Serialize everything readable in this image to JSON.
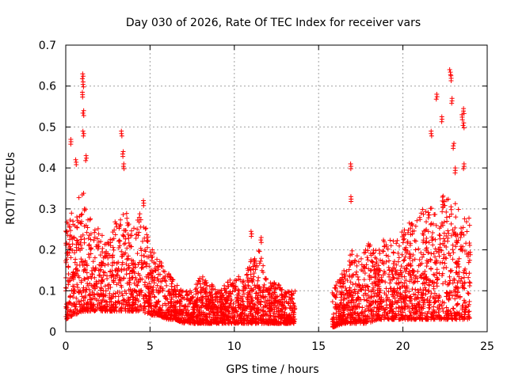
{
  "chart_data": {
    "type": "scatter",
    "title": "Day 030 of 2026, Rate Of TEC Index for receiver vars",
    "xlabel": "GPS time / hours",
    "ylabel": "ROTI / TECUs",
    "xlim": [
      0,
      25
    ],
    "ylim": [
      0,
      0.7
    ],
    "x_ticks": [
      "0",
      "5",
      "10",
      "15",
      "20",
      "25"
    ],
    "y_ticks": [
      "0",
      "0.1",
      "0.2",
      "0.3",
      "0.4",
      "0.5",
      "0.6",
      "0.7"
    ],
    "grid": true,
    "marker": "+",
    "color": "#ff0000",
    "series": [
      {
        "name": "ROTI",
        "segments": [
          {
            "start": 0.0,
            "end": 13.6
          },
          {
            "start": 15.8,
            "end": 24.0
          }
        ],
        "envelope_x": [
          0,
          0.5,
          1,
          1.5,
          2,
          2.5,
          3,
          3.5,
          4,
          4.5,
          5,
          5.5,
          6,
          6.5,
          7,
          7.5,
          8,
          8.5,
          9,
          9.5,
          10,
          10.5,
          11,
          11.5,
          12,
          12.5,
          13,
          13.6,
          15.8,
          16.5,
          17,
          17.5,
          18,
          18.5,
          19,
          19.5,
          20,
          20.5,
          21,
          21.5,
          22,
          22.5,
          23,
          23.5,
          24
        ],
        "envelope_low": [
          0.03,
          0.04,
          0.05,
          0.05,
          0.05,
          0.05,
          0.05,
          0.05,
          0.05,
          0.05,
          0.04,
          0.04,
          0.03,
          0.03,
          0.02,
          0.02,
          0.02,
          0.02,
          0.02,
          0.02,
          0.02,
          0.02,
          0.02,
          0.02,
          0.02,
          0.02,
          0.02,
          0.02,
          0.01,
          0.02,
          0.02,
          0.02,
          0.02,
          0.03,
          0.03,
          0.03,
          0.03,
          0.03,
          0.03,
          0.03,
          0.03,
          0.03,
          0.03,
          0.03,
          0.03
        ],
        "envelope_high": [
          0.28,
          0.3,
          0.35,
          0.27,
          0.25,
          0.22,
          0.28,
          0.3,
          0.25,
          0.3,
          0.22,
          0.18,
          0.15,
          0.12,
          0.1,
          0.1,
          0.14,
          0.12,
          0.11,
          0.12,
          0.14,
          0.13,
          0.18,
          0.2,
          0.12,
          0.12,
          0.1,
          0.1,
          0.1,
          0.15,
          0.2,
          0.18,
          0.22,
          0.2,
          0.25,
          0.22,
          0.25,
          0.28,
          0.3,
          0.3,
          0.32,
          0.35,
          0.32,
          0.3,
          0.28
        ],
        "spikes": [
          {
            "x": 0.3,
            "y": 0.47
          },
          {
            "x": 0.6,
            "y": 0.42
          },
          {
            "x": 1.0,
            "y": 0.63
          },
          {
            "x": 1.05,
            "y": 0.61
          },
          {
            "x": 1.0,
            "y": 0.585
          },
          {
            "x": 1.05,
            "y": 0.54
          },
          {
            "x": 1.05,
            "y": 0.49
          },
          {
            "x": 1.2,
            "y": 0.43
          },
          {
            "x": 3.3,
            "y": 0.49
          },
          {
            "x": 3.4,
            "y": 0.44
          },
          {
            "x": 3.45,
            "y": 0.41
          },
          {
            "x": 4.6,
            "y": 0.32
          },
          {
            "x": 11.0,
            "y": 0.245
          },
          {
            "x": 11.6,
            "y": 0.23
          },
          {
            "x": 16.9,
            "y": 0.41
          },
          {
            "x": 16.9,
            "y": 0.33
          },
          {
            "x": 21.7,
            "y": 0.49
          },
          {
            "x": 22.0,
            "y": 0.58
          },
          {
            "x": 22.3,
            "y": 0.525
          },
          {
            "x": 22.8,
            "y": 0.64
          },
          {
            "x": 22.85,
            "y": 0.625
          },
          {
            "x": 22.9,
            "y": 0.57
          },
          {
            "x": 23.0,
            "y": 0.46
          },
          {
            "x": 23.1,
            "y": 0.4
          },
          {
            "x": 23.5,
            "y": 0.53
          },
          {
            "x": 23.6,
            "y": 0.545
          },
          {
            "x": 23.6,
            "y": 0.51
          },
          {
            "x": 23.6,
            "y": 0.41
          }
        ]
      }
    ]
  }
}
